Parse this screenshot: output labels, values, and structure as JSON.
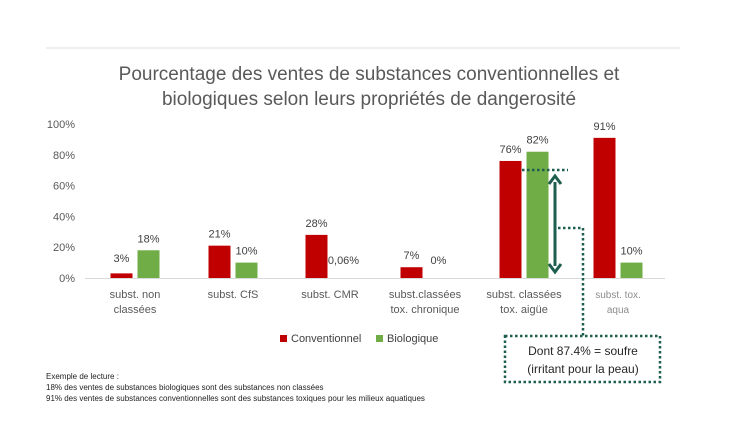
{
  "chart_data": {
    "type": "bar",
    "title": [
      "Pourcentage des ventes de substances conventionnelles et",
      "biologiques selon leurs propriétés de dangerosité"
    ],
    "categories": [
      [
        "subst. non",
        "classées"
      ],
      [
        "subst. CfS"
      ],
      [
        "subst. CMR"
      ],
      [
        "subst.classées",
        "tox. chronique"
      ],
      [
        "subst. classées",
        "tox. aigüe"
      ],
      [
        "subst. tox.",
        "aqua"
      ]
    ],
    "series": [
      {
        "name": "Conventionnel",
        "color": "#c00000",
        "values": [
          3,
          21,
          28,
          7,
          76,
          91
        ],
        "labels": [
          "3%",
          "21%",
          "28%",
          "7%",
          "76%",
          "91%"
        ]
      },
      {
        "name": "Biologique",
        "color": "#70ad47",
        "values": [
          18,
          10,
          0.06,
          0,
          82,
          10
        ],
        "labels": [
          "18%",
          "10%",
          "0,06%",
          "0%",
          "82%",
          "10%"
        ]
      }
    ],
    "yticks": [
      "0%",
      "20%",
      "40%",
      "60%",
      "80%",
      "100%"
    ],
    "ylim": [
      0,
      100
    ],
    "grid": false,
    "legend_position": "bottom",
    "annotation": {
      "lines": [
        "Dont 87.4% = soufre",
        "(irritant pour la peau)"
      ],
      "color": "#1e5e4e"
    }
  },
  "reading_notes": {
    "heading": "Exemple de lecture :",
    "line1": "18% des ventes de substances biologiques sont des substances non classées",
    "line2": "91% des ventes de substances conventionnelles sont des substances toxiques pour les milieux aquatiques"
  }
}
